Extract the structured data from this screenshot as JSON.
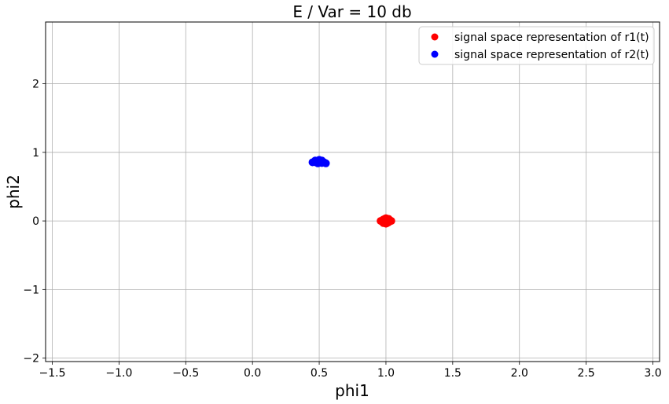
{
  "chart_data": {
    "type": "scatter",
    "title": "E / Var = 10 db",
    "xlabel": "phi1",
    "ylabel": "phi2",
    "xlim": [
      -1.55,
      3.05
    ],
    "ylim": [
      -2.05,
      2.9
    ],
    "xticks": [
      -1.5,
      -1.0,
      -0.5,
      0.0,
      0.5,
      1.0,
      1.5,
      2.0,
      2.5,
      3.0
    ],
    "xtick_labels": [
      "−1.5",
      "−1.0",
      "−0.5",
      "0.0",
      "0.5",
      "1.0",
      "1.5",
      "2.0",
      "2.5",
      "3.0"
    ],
    "yticks": [
      -2,
      -1,
      0,
      1,
      2
    ],
    "ytick_labels": [
      "−2",
      "−1",
      "0",
      "1",
      "2"
    ],
    "grid": true,
    "legend_position": "top-right",
    "series": [
      {
        "name": "signal space representation of r1(t)",
        "color": "#ff0000",
        "points": [
          [
            1.0,
            0.0
          ],
          [
            0.98,
            0.02
          ],
          [
            1.02,
            -0.02
          ],
          [
            0.97,
            -0.01
          ],
          [
            1.03,
            0.01
          ],
          [
            0.99,
            0.03
          ],
          [
            1.01,
            -0.03
          ],
          [
            0.98,
            -0.03
          ],
          [
            1.02,
            0.03
          ],
          [
            1.04,
            0.0
          ],
          [
            0.96,
            0.0
          ],
          [
            1.0,
            0.04
          ],
          [
            1.0,
            -0.04
          ],
          [
            0.99,
            -0.01
          ],
          [
            1.01,
            0.01
          ]
        ]
      },
      {
        "name": "signal space representation of r2(t)",
        "color": "#0000ff",
        "points": [
          [
            0.5,
            0.866
          ],
          [
            0.48,
            0.85
          ],
          [
            0.52,
            0.88
          ],
          [
            0.46,
            0.86
          ],
          [
            0.54,
            0.85
          ],
          [
            0.5,
            0.89
          ],
          [
            0.49,
            0.84
          ],
          [
            0.51,
            0.87
          ],
          [
            0.47,
            0.88
          ],
          [
            0.53,
            0.86
          ],
          [
            0.55,
            0.84
          ],
          [
            0.45,
            0.855
          ],
          [
            0.5,
            0.85
          ],
          [
            0.49,
            0.875
          ],
          [
            0.52,
            0.845
          ]
        ]
      }
    ]
  }
}
